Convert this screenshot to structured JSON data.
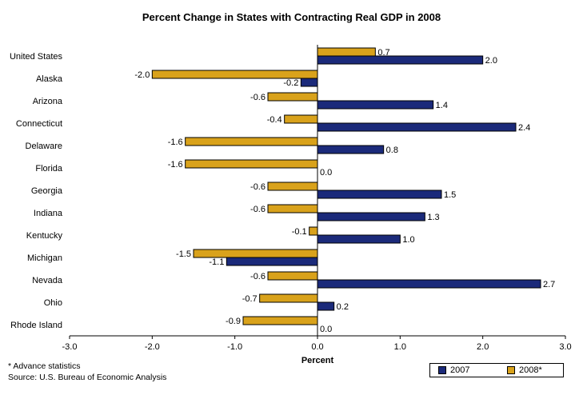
{
  "chart_data": {
    "type": "bar",
    "orientation": "horizontal",
    "title": "Percent Change in States with Contracting Real GDP in 2008",
    "xlabel": "Percent",
    "ylabel": "",
    "xlim": [
      -3.0,
      3.0
    ],
    "xticks": [
      "-3.0",
      "-2.0",
      "-1.0",
      "0.0",
      "1.0",
      "2.0",
      "3.0"
    ],
    "grid": false,
    "legend_position": "bottom-right",
    "categories": [
      "United States",
      "Alaska",
      "Arizona",
      "Connecticut",
      "Delaware",
      "Florida",
      "Georgia",
      "Indiana",
      "Kentucky",
      "Michigan",
      "Nevada",
      "Ohio",
      "Rhode Island"
    ],
    "series": [
      {
        "name": "2007",
        "color": "#1b2a7a",
        "values": [
          2.0,
          -0.2,
          1.4,
          2.4,
          0.8,
          0.0,
          1.5,
          1.3,
          1.0,
          -1.1,
          2.7,
          0.2,
          0.0
        ],
        "labels": [
          "2.0",
          "-0.2",
          "1.4",
          "2.4",
          "0.8",
          "0.0",
          "1.5",
          "1.3",
          "1.0",
          "-1.1",
          "2.7",
          "0.2",
          "0.0"
        ]
      },
      {
        "name": "2008*",
        "color": "#d9a21b",
        "values": [
          0.7,
          -2.0,
          -0.6,
          -0.4,
          -1.6,
          -1.6,
          -0.6,
          -0.6,
          -0.1,
          -1.5,
          -0.6,
          -0.7,
          -0.9
        ],
        "labels": [
          "0.7",
          "-2.0",
          "-0.6",
          "-0.4",
          "-1.6",
          "-1.6",
          "-0.6",
          "-0.6",
          "-0.1",
          "-1.5",
          "-0.6",
          "-0.7",
          "-0.9"
        ]
      }
    ]
  },
  "footnotes": {
    "advance": "* Advance statistics",
    "source": "Source: U.S. Bureau of Economic Analysis"
  }
}
